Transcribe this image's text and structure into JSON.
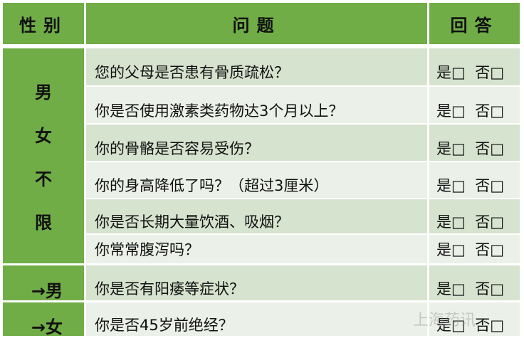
{
  "header": {
    "gender": "性别",
    "question": "问题",
    "answer": "回答"
  },
  "groups": {
    "all": [
      "男",
      "女",
      "不",
      "限"
    ],
    "male": "→男",
    "female": "→女"
  },
  "rows": [
    {
      "q": "您的父母是否患有骨质疏松？",
      "a": "是□  否□"
    },
    {
      "q": "你是否使用激素类药物达3个月以上？",
      "a": "是□  否□"
    },
    {
      "q": "你的骨骼是否容易受伤？",
      "a": "是□  否□"
    },
    {
      "q": "你的身高降低了吗？（超过3厘米）",
      "a": "是□  否□"
    },
    {
      "q": "你是否长期大量饮酒、吸烟？",
      "a": "是□  否□"
    },
    {
      "q": "你常常腹泻吗？",
      "a": "是□  否□"
    },
    {
      "q": "你是否有阳痿等症状？",
      "a": "是□  否□"
    },
    {
      "q": "你是否45岁前绝经？",
      "a": "是□  否□"
    }
  ],
  "watermark": "上海药讯"
}
